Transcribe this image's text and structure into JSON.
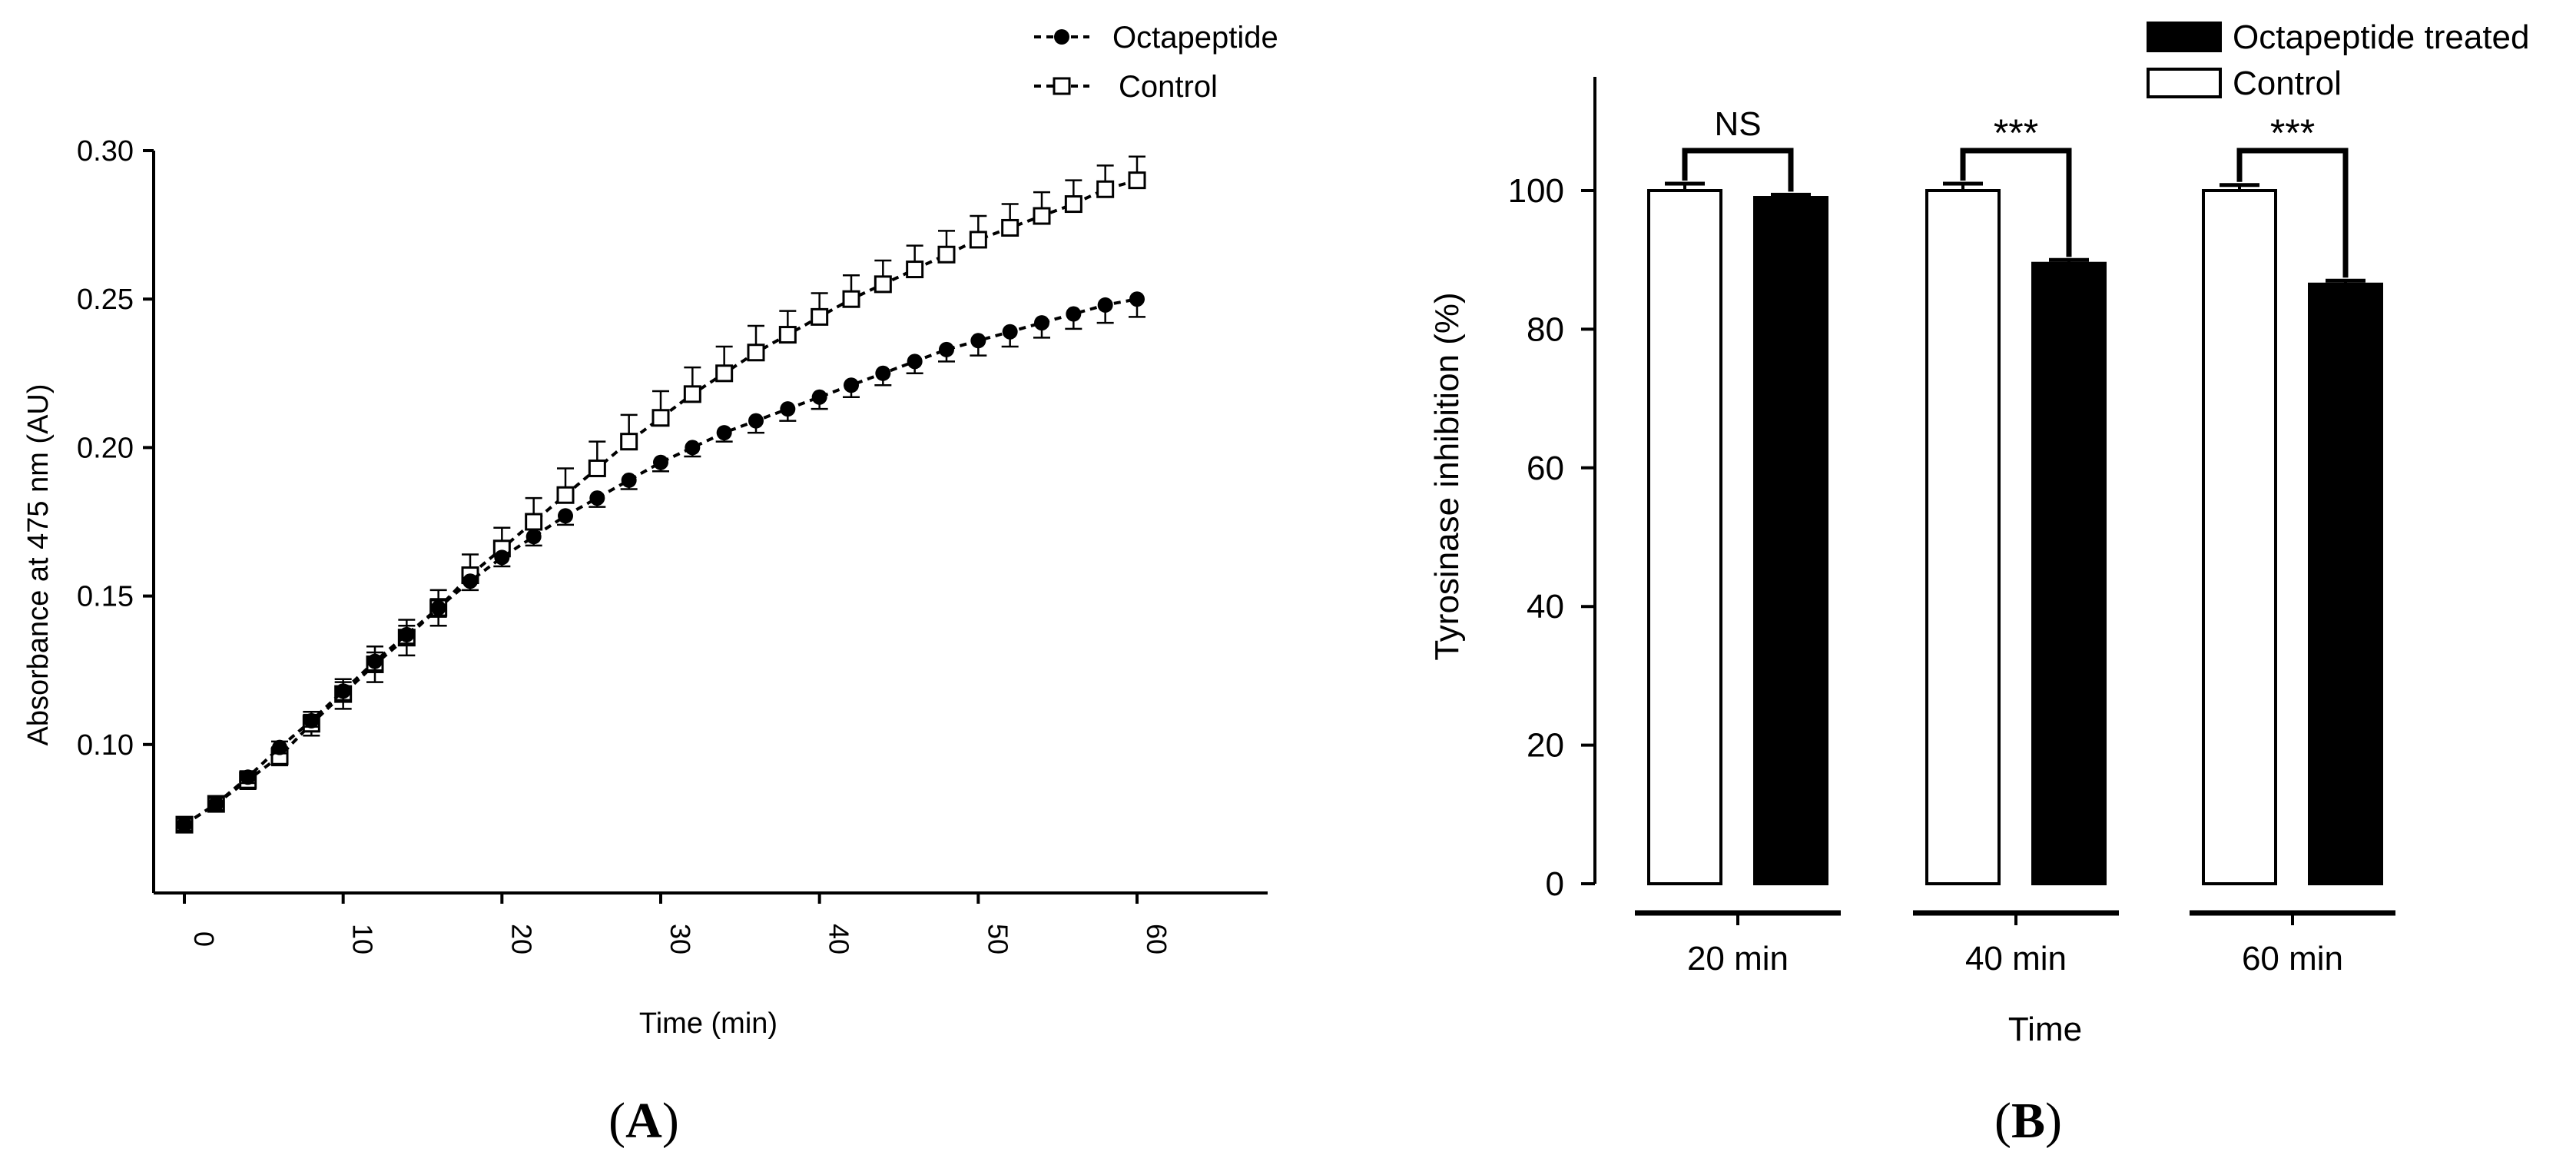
{
  "chart_data": [
    {
      "panel_label": "A",
      "type": "line",
      "xlabel": "Time (min)",
      "ylabel": "Absorbance at 475 nm (AU)",
      "xlim": [
        0,
        66
      ],
      "ylim": [
        0.05,
        0.3
      ],
      "xticks": [
        0,
        10,
        20,
        30,
        40,
        50,
        60
      ],
      "yticks": [
        0.1,
        0.15,
        0.2,
        0.25,
        0.3
      ],
      "tick_format": {
        "x": "0",
        "y": "0.00"
      },
      "grid": false,
      "legend_position": "top-right",
      "x": [
        0,
        2,
        4,
        6,
        8,
        10,
        12,
        14,
        16,
        18,
        20,
        22,
        24,
        26,
        28,
        30,
        32,
        34,
        36,
        38,
        40,
        42,
        44,
        46,
        48,
        50,
        52,
        54,
        56,
        58,
        60
      ],
      "series": [
        {
          "name": "Octapeptide",
          "marker": "filled-circle",
          "values": [
            0.073,
            0.08,
            0.089,
            0.099,
            0.108,
            0.118,
            0.128,
            0.137,
            0.146,
            0.155,
            0.163,
            0.17,
            0.177,
            0.183,
            0.189,
            0.195,
            0.2,
            0.205,
            0.209,
            0.213,
            0.217,
            0.221,
            0.225,
            0.229,
            0.233,
            0.236,
            0.239,
            0.242,
            0.245,
            0.248,
            0.25
          ],
          "errors": [
            0.002,
            0.002,
            0.002,
            0.002,
            0.002,
            0.003,
            0.003,
            0.003,
            0.003,
            0.003,
            0.003,
            0.003,
            0.003,
            0.003,
            0.003,
            0.003,
            0.003,
            0.003,
            0.004,
            0.004,
            0.004,
            0.004,
            0.004,
            0.004,
            0.004,
            0.005,
            0.005,
            0.005,
            0.005,
            0.006,
            0.006
          ]
        },
        {
          "name": "Control",
          "marker": "open-square",
          "values": [
            0.073,
            0.08,
            0.088,
            0.096,
            0.107,
            0.117,
            0.127,
            0.136,
            0.146,
            0.157,
            0.166,
            0.175,
            0.184,
            0.193,
            0.202,
            0.21,
            0.218,
            0.225,
            0.232,
            0.238,
            0.244,
            0.25,
            0.255,
            0.26,
            0.265,
            0.27,
            0.274,
            0.278,
            0.282,
            0.287,
            0.29
          ],
          "errors": [
            0.002,
            0.002,
            0.003,
            0.003,
            0.004,
            0.005,
            0.006,
            0.006,
            0.006,
            0.007,
            0.007,
            0.008,
            0.009,
            0.009,
            0.009,
            0.009,
            0.009,
            0.009,
            0.009,
            0.008,
            0.008,
            0.008,
            0.008,
            0.008,
            0.008,
            0.008,
            0.008,
            0.008,
            0.008,
            0.008,
            0.008
          ]
        }
      ]
    },
    {
      "panel_label": "B",
      "type": "bar",
      "xlabel": "Time",
      "ylabel": "Tyrosinase inhibition (%)",
      "ylim": [
        0,
        115
      ],
      "yticks": [
        0,
        20,
        40,
        60,
        80,
        100
      ],
      "grid": false,
      "legend_position": "top-right",
      "categories": [
        "20 min",
        "40 min",
        "60 min"
      ],
      "series": [
        {
          "name": "Control",
          "fill": "open",
          "values": [
            100,
            100,
            100
          ],
          "errors": [
            1.0,
            1.0,
            0.8
          ]
        },
        {
          "name": "Octapeptide treated",
          "fill": "filled",
          "values": [
            99,
            89.5,
            86.5
          ],
          "errors": [
            0.4,
            0.5,
            0.5
          ]
        }
      ],
      "significance": [
        "NS",
        "***",
        "***"
      ]
    }
  ],
  "colors": {
    "ink": "#000000",
    "background": "#ffffff"
  }
}
